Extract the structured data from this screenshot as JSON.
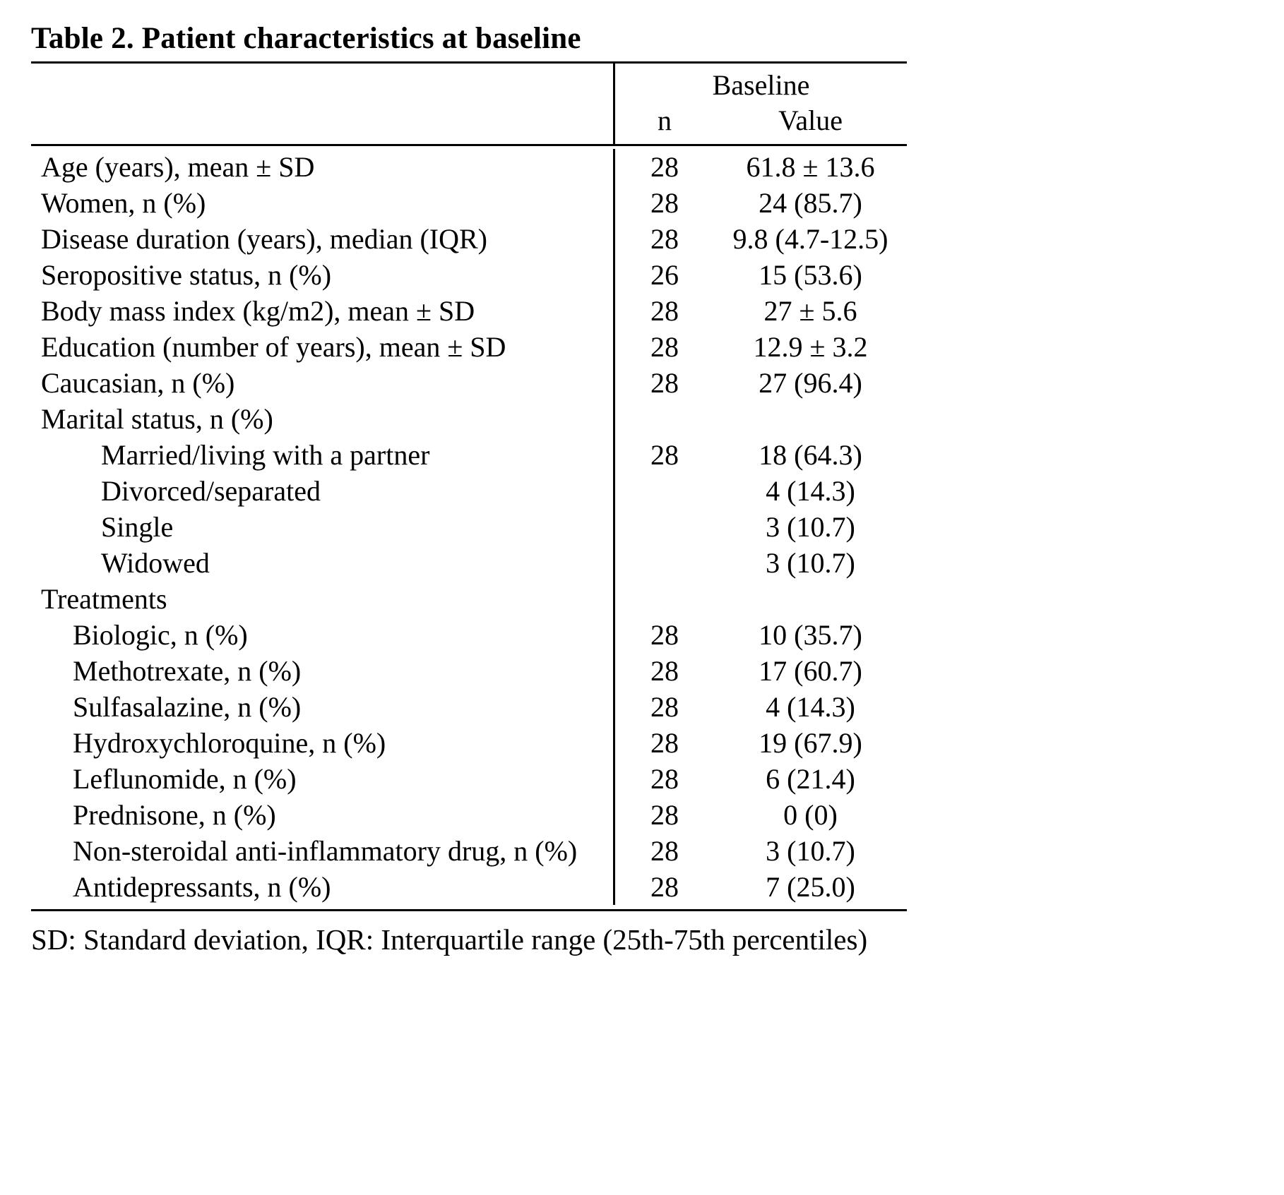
{
  "title": "Table 2. Patient characteristics at baseline",
  "header": {
    "group": "Baseline",
    "col_n": "n",
    "col_value": "Value"
  },
  "rows": [
    {
      "label": "Age (years), mean ± SD",
      "indent": 0,
      "n": "28",
      "value": "61.8 ± 13.6"
    },
    {
      "label": "Women, n (%)",
      "indent": 0,
      "n": "28",
      "value": "24 (85.7)"
    },
    {
      "label": "Disease duration (years), median (IQR)",
      "indent": 0,
      "n": "28",
      "value": "9.8 (4.7-12.5)"
    },
    {
      "label": "Seropositive status, n (%)",
      "indent": 0,
      "n": "26",
      "value": "15 (53.6)"
    },
    {
      "label": "Body mass index (kg/m2), mean ± SD",
      "indent": 0,
      "n": "28",
      "value": "27 ± 5.6"
    },
    {
      "label": "Education (number of years), mean ± SD",
      "indent": 0,
      "n": "28",
      "value": "12.9 ± 3.2"
    },
    {
      "label": "Caucasian, n (%)",
      "indent": 0,
      "n": "28",
      "value": "27 (96.4)"
    },
    {
      "label": "Marital status, n (%)",
      "indent": 0,
      "n": "",
      "value": ""
    },
    {
      "label": "Married/living with a partner",
      "indent": 2,
      "n": "28",
      "value": "18 (64.3)"
    },
    {
      "label": "Divorced/separated",
      "indent": 2,
      "n": "",
      "value": "4 (14.3)"
    },
    {
      "label": "Single",
      "indent": 2,
      "n": "",
      "value": "3 (10.7)"
    },
    {
      "label": "Widowed",
      "indent": 2,
      "n": "",
      "value": "3 (10.7)"
    },
    {
      "label": "Treatments",
      "indent": 0,
      "n": "",
      "value": ""
    },
    {
      "label": "Biologic, n (%)",
      "indent": 1,
      "n": "28",
      "value": "10 (35.7)"
    },
    {
      "label": "Methotrexate, n (%)",
      "indent": 1,
      "n": "28",
      "value": "17 (60.7)"
    },
    {
      "label": "Sulfasalazine, n (%)",
      "indent": 1,
      "n": "28",
      "value": "4 (14.3)"
    },
    {
      "label": "Hydroxychloroquine, n (%)",
      "indent": 1,
      "n": "28",
      "value": "19 (67.9)"
    },
    {
      "label": "Leflunomide, n (%)",
      "indent": 1,
      "n": "28",
      "value": "6 (21.4)"
    },
    {
      "label": "Prednisone, n (%)",
      "indent": 1,
      "n": "28",
      "value": "0 (0)"
    },
    {
      "label": "Non-steroidal anti-inflammatory drug, n (%)",
      "indent": 1,
      "n": "28",
      "value": "3 (10.7)"
    },
    {
      "label": "Antidepressants, n (%)",
      "indent": 1,
      "n": "28",
      "value": "7 (25.0)"
    }
  ],
  "footnote": "SD: Standard deviation, IQR: Interquartile range (25th-75th percentiles)",
  "colors": {
    "text": "#000000",
    "background": "#ffffff",
    "rule": "#000000"
  }
}
